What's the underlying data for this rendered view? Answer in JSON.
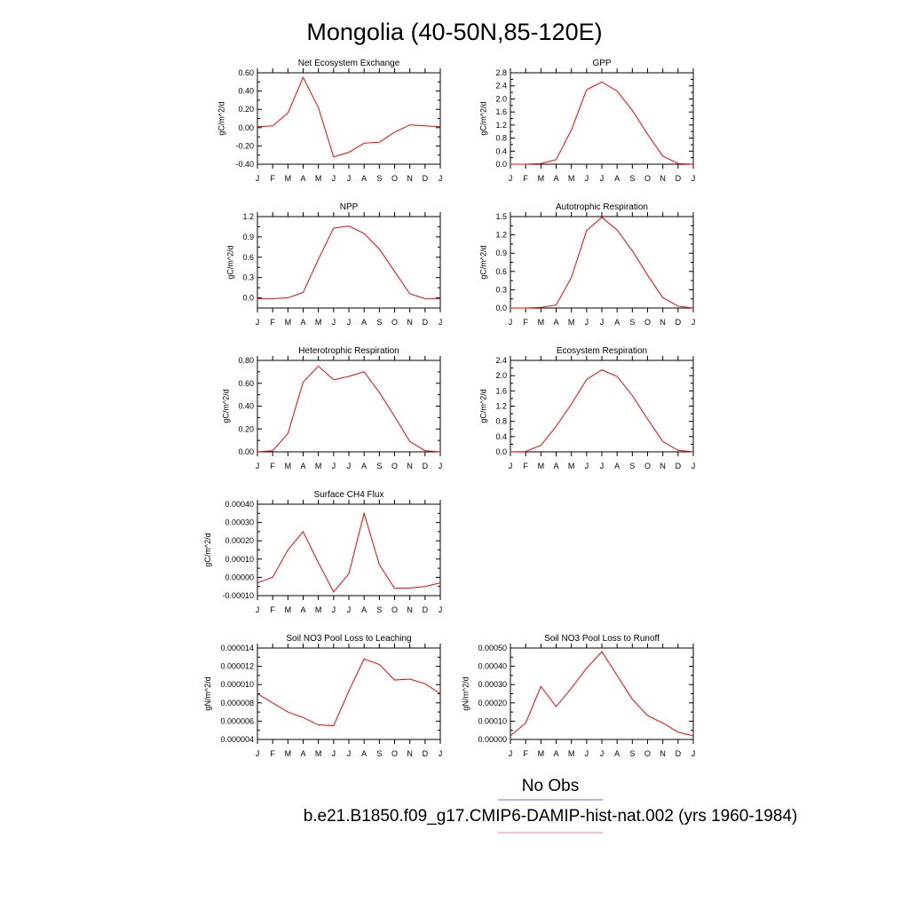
{
  "figure": {
    "title": "Mongolia (40-50N,85-120E)"
  },
  "legend": {
    "obs_label": "No Obs",
    "model_label": "b.e21.B1850.f09_g17.CMIP6-DAMIP-hist-nat.002 (yrs 1960-1984)",
    "obs_color": "#6a6ae8",
    "model_color": "#ff7f7f"
  },
  "colors": {
    "series": "#ff0000",
    "frame": "#000000"
  },
  "months": [
    "J",
    "F",
    "M",
    "A",
    "M",
    "J",
    "J",
    "A",
    "S",
    "O",
    "N",
    "D",
    "J"
  ],
  "chart_data": [
    {
      "id": "nee",
      "type": "line",
      "title": "Net Ecosystem Exchange",
      "ylabel": "gC/m^2/d",
      "ylim": [
        -0.4,
        0.6
      ],
      "yticks": [
        -0.4,
        -0.2,
        0.0,
        0.2,
        0.4,
        0.6
      ],
      "ytick_labels": [
        "-0.40",
        "-0.20",
        "0.00",
        "0.20",
        "0.40",
        "0.60"
      ],
      "series": [
        {
          "values": [
            0.01,
            0.02,
            0.16,
            0.55,
            0.22,
            -0.32,
            -0.27,
            -0.17,
            -0.16,
            -0.05,
            0.03,
            0.02,
            0.01
          ]
        }
      ]
    },
    {
      "id": "gpp",
      "type": "line",
      "title": "GPP",
      "ylabel": "gC/m^2/d",
      "ylim": [
        0.0,
        2.8
      ],
      "yticks": [
        0.0,
        0.4,
        0.8,
        1.2,
        1.6,
        2.0,
        2.4,
        2.8
      ],
      "ytick_labels": [
        "0.0",
        "0.4",
        "0.8",
        "1.2",
        "1.6",
        "2.0",
        "2.4",
        "2.8"
      ],
      "series": [
        {
          "values": [
            0.0,
            0.0,
            0.02,
            0.14,
            1.05,
            2.28,
            2.52,
            2.24,
            1.65,
            0.92,
            0.25,
            0.02,
            0.0
          ]
        }
      ]
    },
    {
      "id": "npp",
      "type": "line",
      "title": "NPP",
      "ylabel": "gC/m^2/d",
      "ylim": [
        -0.15,
        1.2
      ],
      "yticks": [
        0.0,
        0.3,
        0.6,
        0.9,
        1.2
      ],
      "ytick_labels": [
        "0.0",
        "0.3",
        "0.6",
        "0.9",
        "1.2"
      ],
      "series": [
        {
          "values": [
            -0.01,
            -0.01,
            0.0,
            0.08,
            0.57,
            1.03,
            1.06,
            0.95,
            0.72,
            0.39,
            0.06,
            -0.01,
            -0.01
          ]
        }
      ]
    },
    {
      "id": "ar",
      "type": "line",
      "title": "Autotrophic Respiration",
      "ylabel": "gC/m^2/d",
      "ylim": [
        0.0,
        1.5
      ],
      "yticks": [
        0.0,
        0.3,
        0.6,
        0.9,
        1.2,
        1.5
      ],
      "ytick_labels": [
        "0.0",
        "0.3",
        "0.6",
        "0.9",
        "1.2",
        "1.5"
      ],
      "series": [
        {
          "values": [
            0.0,
            0.0,
            0.01,
            0.05,
            0.5,
            1.27,
            1.49,
            1.28,
            0.94,
            0.54,
            0.17,
            0.03,
            0.0
          ]
        }
      ]
    },
    {
      "id": "hr",
      "type": "line",
      "title": "Heterotrophic Respiration",
      "ylabel": "gC/m^2/d",
      "ylim": [
        0.0,
        0.8
      ],
      "yticks": [
        0.0,
        0.2,
        0.4,
        0.6,
        0.8
      ],
      "ytick_labels": [
        "0.00",
        "0.20",
        "0.40",
        "0.60",
        "0.80"
      ],
      "series": [
        {
          "values": [
            0.0,
            0.01,
            0.16,
            0.61,
            0.75,
            0.63,
            0.66,
            0.7,
            0.52,
            0.31,
            0.09,
            0.01,
            0.0
          ]
        }
      ]
    },
    {
      "id": "er",
      "type": "line",
      "title": "Ecosystem Respiration",
      "ylabel": "gC/m^2/d",
      "ylim": [
        0.0,
        2.4
      ],
      "yticks": [
        0.0,
        0.4,
        0.8,
        1.2,
        1.6,
        2.0,
        2.4
      ],
      "ytick_labels": [
        "0.0",
        "0.4",
        "0.8",
        "1.2",
        "1.6",
        "2.0",
        "2.4"
      ],
      "series": [
        {
          "values": [
            0.0,
            0.01,
            0.17,
            0.67,
            1.25,
            1.9,
            2.15,
            1.98,
            1.48,
            0.86,
            0.27,
            0.04,
            0.0
          ]
        }
      ]
    },
    {
      "id": "ch4",
      "type": "line",
      "title": "Surface CH4 Flux",
      "ylabel": "gC/m^2/d",
      "ylim": [
        -0.0001,
        0.0004
      ],
      "yticks": [
        -0.0001,
        0.0,
        0.0001,
        0.0002,
        0.0003,
        0.0004
      ],
      "ytick_labels": [
        "-0.00010",
        "0.00000",
        "0.00010",
        "0.00020",
        "0.00030",
        "0.00040"
      ],
      "series": [
        {
          "values": [
            -3e-05,
            0.0,
            0.00015,
            0.00025,
            8e-05,
            -8e-05,
            2e-05,
            0.00035,
            7e-05,
            -6e-05,
            -5.8e-05,
            -5e-05,
            -3e-05
          ]
        }
      ]
    },
    {
      "id": "leach",
      "type": "line",
      "title": "Soil NO3 Pool Loss to Leaching",
      "ylabel": "gN/m^2/d",
      "ylim": [
        4e-06,
        1.4e-05
      ],
      "yticks": [
        4e-06,
        6e-06,
        8e-06,
        1e-05,
        1.2e-05,
        1.4e-05
      ],
      "ytick_labels": [
        "0.000004",
        "0.000006",
        "0.000008",
        "0.000010",
        "0.000012",
        "0.000014"
      ],
      "series": [
        {
          "values": [
            9e-06,
            8e-06,
            7e-06,
            6.4e-06,
            5.6e-06,
            5.5e-06,
            9.3e-06,
            1.28e-05,
            1.22e-05,
            1.05e-05,
            1.06e-05,
            1.01e-05,
            9e-06
          ]
        }
      ]
    },
    {
      "id": "runoff",
      "type": "line",
      "title": "Soil NO3 Pool Loss to Runoff",
      "ylabel": "gN/m^2/d",
      "ylim": [
        0.0,
        0.0005
      ],
      "yticks": [
        0.0,
        0.0001,
        0.0002,
        0.0003,
        0.0004,
        0.0005
      ],
      "ytick_labels": [
        "0.00000",
        "0.00010",
        "0.00020",
        "0.00030",
        "0.00040",
        "0.00050"
      ],
      "series": [
        {
          "values": [
            2e-05,
            9e-05,
            0.00029,
            0.00018,
            0.00028,
            0.00039,
            0.00048,
            0.00035,
            0.00022,
            0.00013,
            9e-05,
            4e-05,
            2e-05
          ]
        }
      ]
    }
  ]
}
